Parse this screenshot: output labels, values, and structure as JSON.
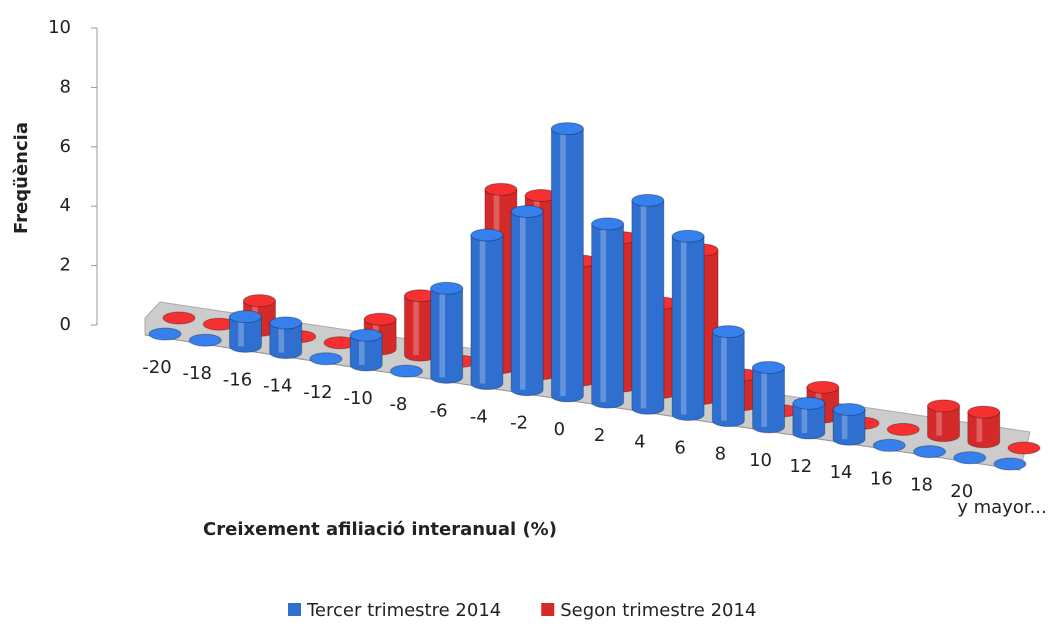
{
  "chart_data": {
    "type": "bar3d",
    "x_label": "Creixement afiliació interanual (%)",
    "y_label": "Freqüència",
    "categories": [
      "-20",
      "-18",
      "-16",
      "-14",
      "-12",
      "-10",
      "-8",
      "-6",
      "-4",
      "-2",
      "0",
      "2",
      "4",
      "6",
      "8",
      "10",
      "12",
      "14",
      "16",
      "18",
      "20",
      "y mayor..."
    ],
    "series": [
      {
        "name": "Tercer trimestre 2014",
        "color": "#2f6fcf",
        "values": [
          0,
          0,
          1,
          1,
          0,
          1,
          0,
          3,
          5,
          6,
          9,
          6,
          7,
          6,
          3,
          2,
          1,
          1,
          0,
          0,
          0,
          0
        ]
      },
      {
        "name": "Segon trimestre 2014",
        "color": "#d42a2a",
        "values": [
          0,
          0,
          1,
          0,
          0,
          1,
          2,
          0,
          6,
          6,
          4,
          5,
          3,
          5,
          1,
          0,
          1,
          0,
          0,
          1,
          1,
          0
        ]
      }
    ],
    "ylim": [
      0,
      10
    ],
    "yticks": [
      0,
      2,
      4,
      6,
      8,
      10
    ],
    "legend": "bottom"
  }
}
